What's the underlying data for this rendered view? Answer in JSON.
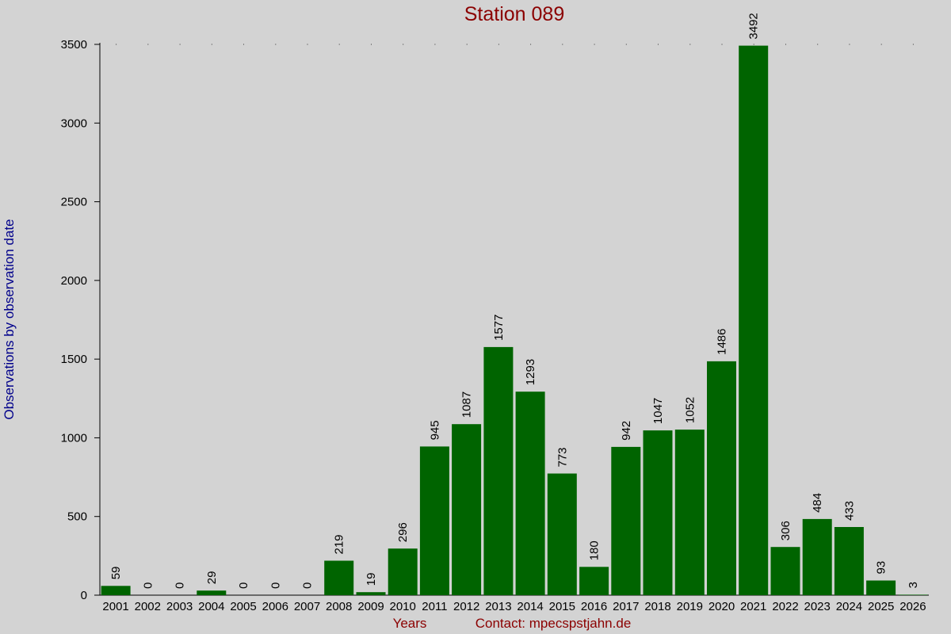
{
  "chart_data": {
    "type": "bar",
    "title": "Station 089",
    "xlabel": "Years",
    "ylabel": "Observations by observation date",
    "contact": "Contact: mpecspstjahn.de",
    "categories": [
      "2001",
      "2002",
      "2003",
      "2004",
      "2005",
      "2006",
      "2007",
      "2008",
      "2009",
      "2010",
      "2011",
      "2012",
      "2013",
      "2014",
      "2015",
      "2016",
      "2017",
      "2018",
      "2019",
      "2020",
      "2021",
      "2022",
      "2023",
      "2024",
      "2025",
      "2026"
    ],
    "values": [
      59,
      0,
      0,
      29,
      0,
      0,
      0,
      219,
      19,
      296,
      945,
      1087,
      1577,
      1293,
      773,
      180,
      942,
      1047,
      1052,
      1486,
      3492,
      306,
      484,
      433,
      93,
      3
    ],
    "value_labels": [
      "59",
      "0",
      "0",
      "29",
      "0",
      "0",
      "0",
      "219",
      "19",
      "296",
      "945",
      "1087",
      "1577",
      "1293",
      "773",
      "180",
      "942",
      "1047",
      "1052",
      "1486",
      "3492",
      "306",
      "484",
      "433",
      "93",
      "3"
    ],
    "yticks": [
      0,
      500,
      1000,
      1500,
      2000,
      2500,
      3000,
      3500
    ],
    "ytick_labels": [
      "0",
      "500",
      "1000",
      "1500",
      "2000",
      "2500",
      "3000",
      "3500"
    ],
    "ylim": [
      0,
      3500
    ],
    "colors": {
      "bar": "#006400",
      "background": "#d3d3d3",
      "title": "#8b0000",
      "ylabel": "#00008b",
      "xlabel": "#8b0000"
    }
  }
}
